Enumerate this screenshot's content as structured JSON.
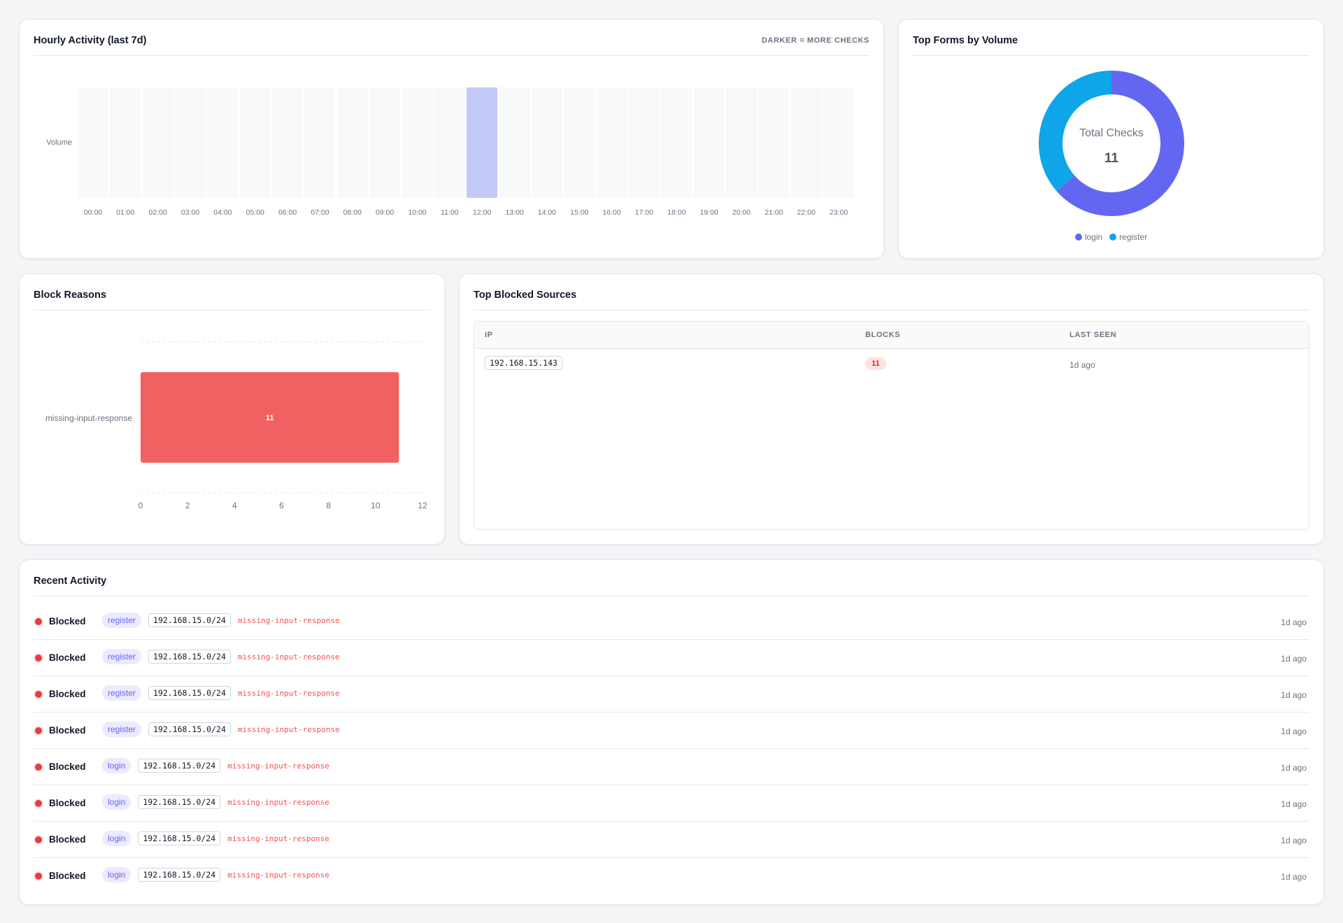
{
  "hourly": {
    "title": "Hourly Activity (last 7d)",
    "hint": "DARKER = MORE CHECKS",
    "row_label": "Volume",
    "hours": [
      "00:00",
      "01:00",
      "02:00",
      "03:00",
      "04:00",
      "05:00",
      "06:00",
      "07:00",
      "08:00",
      "09:00",
      "10:00",
      "11:00",
      "12:00",
      "13:00",
      "14:00",
      "15:00",
      "16:00",
      "17:00",
      "18:00",
      "19:00",
      "20:00",
      "21:00",
      "22:00",
      "23:00"
    ],
    "counts": [
      0,
      0,
      0,
      0,
      0,
      0,
      0,
      0,
      0,
      0,
      0,
      0,
      11,
      0,
      0,
      0,
      0,
      0,
      0,
      0,
      0,
      0,
      0,
      0
    ],
    "empty_color": "#f8f9fa",
    "max_color": "#c3c9f7"
  },
  "forms": {
    "title": "Top Forms by Volume",
    "center_label": "Total Checks",
    "center_value": "11",
    "chart_data": {
      "type": "pie",
      "labels": [
        "login",
        "register"
      ],
      "values": [
        7,
        4
      ],
      "colors": [
        "#6366f1",
        "#0ea5e9"
      ]
    }
  },
  "reasons": {
    "title": "Block Reasons",
    "chart_data": {
      "type": "bar",
      "orientation": "horizontal",
      "categories": [
        "missing-input-response"
      ],
      "values": [
        11
      ],
      "xlim": [
        0,
        12
      ],
      "xticks": [
        0,
        2,
        4,
        6,
        8,
        10,
        12
      ],
      "bar_color": "#f26161",
      "grid": true
    }
  },
  "sources": {
    "title": "Top Blocked Sources",
    "columns": [
      "IP",
      "BLOCKS",
      "LAST SEEN"
    ],
    "rows": [
      {
        "ip": "192.168.15.143",
        "blocks": "11",
        "last_seen": "1d ago"
      }
    ]
  },
  "recent": {
    "title": "Recent Activity",
    "rows": [
      {
        "status": "Blocked",
        "form": "register",
        "ip": "192.168.15.0/24",
        "reason": "missing-input-response",
        "time": "1d ago"
      },
      {
        "status": "Blocked",
        "form": "register",
        "ip": "192.168.15.0/24",
        "reason": "missing-input-response",
        "time": "1d ago"
      },
      {
        "status": "Blocked",
        "form": "register",
        "ip": "192.168.15.0/24",
        "reason": "missing-input-response",
        "time": "1d ago"
      },
      {
        "status": "Blocked",
        "form": "register",
        "ip": "192.168.15.0/24",
        "reason": "missing-input-response",
        "time": "1d ago"
      },
      {
        "status": "Blocked",
        "form": "login",
        "ip": "192.168.15.0/24",
        "reason": "missing-input-response",
        "time": "1d ago"
      },
      {
        "status": "Blocked",
        "form": "login",
        "ip": "192.168.15.0/24",
        "reason": "missing-input-response",
        "time": "1d ago"
      },
      {
        "status": "Blocked",
        "form": "login",
        "ip": "192.168.15.0/24",
        "reason": "missing-input-response",
        "time": "1d ago"
      },
      {
        "status": "Blocked",
        "form": "login",
        "ip": "192.168.15.0/24",
        "reason": "missing-input-response",
        "time": "1d ago"
      }
    ],
    "status_color": "#e53e3e"
  }
}
